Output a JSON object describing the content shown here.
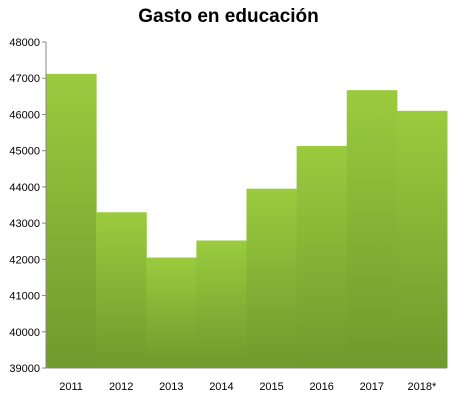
{
  "chart_data": {
    "type": "bar",
    "title": "Gasto en educación",
    "xlabel": "",
    "ylabel": "",
    "categories": [
      "2011",
      "2012",
      "2013",
      "2014",
      "2015",
      "2016",
      "2017",
      "2018*"
    ],
    "values": [
      47120,
      43300,
      42050,
      42520,
      43950,
      45130,
      46670,
      46100
    ],
    "ylim": [
      39000,
      48000
    ],
    "yticks": [
      "39000",
      "40000",
      "41000",
      "42000",
      "43000",
      "44000",
      "45000",
      "46000",
      "47000",
      "48000"
    ],
    "grid": false,
    "legend": "none",
    "colors": {
      "bar_top": "#9acb3e",
      "bar_bottom": "#6f9a2d",
      "axis": "#888888"
    }
  }
}
